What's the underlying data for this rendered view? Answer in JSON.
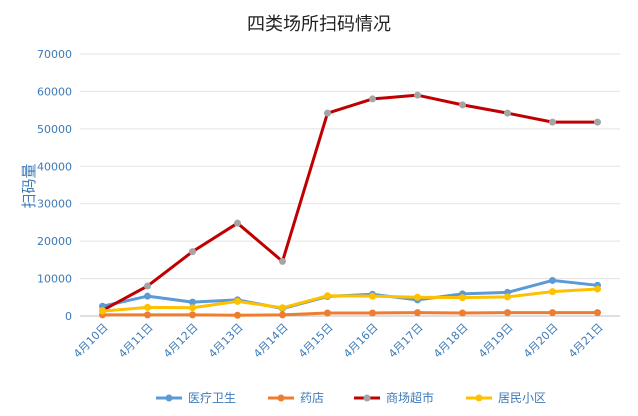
{
  "chart_data": {
    "type": "line",
    "title": "四类场所扫码情况",
    "ylabel": "扫码量",
    "xlabel": "",
    "categories": [
      "4月10日",
      "4月11日",
      "4月12日",
      "4月13日",
      "4月14日",
      "4月15日",
      "4月16日",
      "4月17日",
      "4月18日",
      "4月19日",
      "4月20日",
      "4月21日"
    ],
    "ylim": [
      0,
      70000
    ],
    "yticks": [
      "0",
      "10000",
      "20000",
      "30000",
      "40000",
      "50000",
      "60000",
      "70000"
    ],
    "grid": true,
    "legend_position": "bottom",
    "series": [
      {
        "name": "医疗卫生",
        "color": "#5b9bd5",
        "values": [
          2600,
          5300,
          3700,
          4300,
          2000,
          5200,
          5800,
          4300,
          5900,
          6300,
          9500,
          8200
        ]
      },
      {
        "name": "药店",
        "color": "#ed7d31",
        "values": [
          300,
          300,
          300,
          200,
          300,
          800,
          800,
          900,
          800,
          900,
          900,
          900
        ]
      },
      {
        "name": "商场超市",
        "color": "#c00000",
        "marker_color": "#a5a5a5",
        "values": [
          1500,
          8000,
          17200,
          24800,
          14600,
          54200,
          58000,
          59000,
          56400,
          54200,
          51800,
          51800
        ]
      },
      {
        "name": "居民小区",
        "color": "#ffc000",
        "values": [
          1300,
          2300,
          2200,
          3900,
          2200,
          5400,
          5300,
          5000,
          4900,
          5100,
          6500,
          7200
        ]
      }
    ]
  }
}
